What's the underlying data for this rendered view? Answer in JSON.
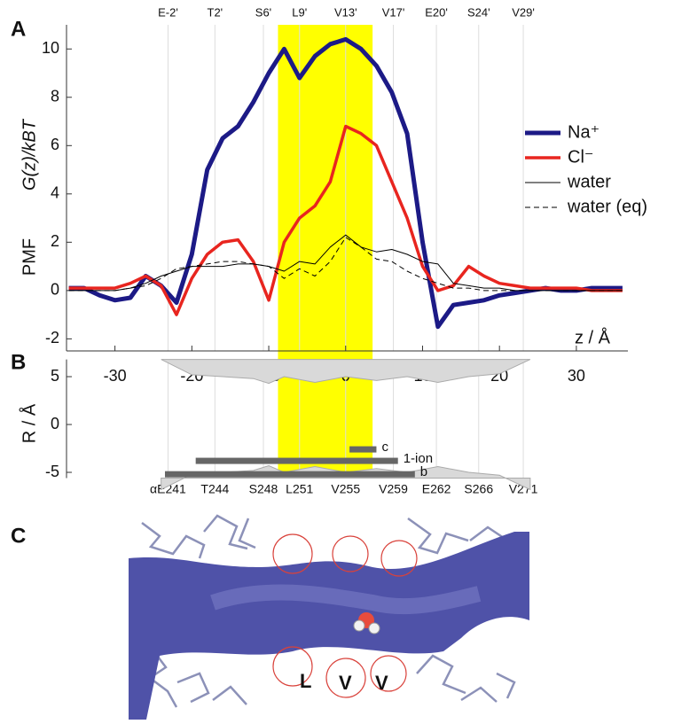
{
  "panel_labels": [
    "A",
    "B",
    "C"
  ],
  "chart_data": [
    {
      "type": "line",
      "y_label": "PMF",
      "y_label_2": "G(z)/kBT",
      "x_label": "z / Å",
      "xlim": [
        -36.3,
        36.7
      ],
      "ylim": [
        -2.5,
        11
      ],
      "xticks": [
        -30,
        -20,
        -10,
        0,
        10,
        20,
        30
      ],
      "yticks": [
        -2,
        0,
        2,
        4,
        6,
        8,
        10
      ],
      "top_ticks": [
        {
          "value": -23.1,
          "label": "E-2'"
        },
        {
          "value": -17,
          "label": "T2'"
        },
        {
          "value": -10.7,
          "label": "S6'"
        },
        {
          "value": -6,
          "label": "L9'"
        },
        {
          "value": 0,
          "label": "V13'"
        },
        {
          "value": 6.2,
          "label": "V17'"
        },
        {
          "value": 11.8,
          "label": "E20'"
        },
        {
          "value": 17.3,
          "label": "S24'"
        },
        {
          "value": 23.1,
          "label": "V29'"
        }
      ],
      "highlight": [
        -8.8,
        3.5
      ],
      "highlight_color": "#ffff00",
      "x": [
        -36,
        -34,
        -32,
        -30,
        -28,
        -26,
        -24,
        -22,
        -20,
        -18,
        -16,
        -14,
        -12,
        -10,
        -8,
        -6,
        -4,
        -2,
        0,
        2,
        4,
        6,
        8,
        10,
        12,
        14,
        16,
        18,
        20,
        22,
        24,
        26,
        28,
        30,
        32,
        34,
        36
      ],
      "series": [
        {
          "name": "Na⁺",
          "color": "#1c1a86",
          "width": 5,
          "dash": false,
          "values": [
            0.1,
            0.1,
            -0.2,
            -0.4,
            -0.3,
            0.6,
            0.2,
            -0.5,
            1.5,
            5,
            6.3,
            6.8,
            7.8,
            9,
            10,
            8.8,
            9.7,
            10.2,
            10.4,
            10,
            9.3,
            8.2,
            6.5,
            2,
            -1.5,
            -0.6,
            -0.5,
            -0.4,
            -0.2,
            -0.1,
            0,
            0.1,
            0,
            0,
            0.1,
            0.1,
            0.1
          ]
        },
        {
          "name": "Cl⁻",
          "color": "#e8251f",
          "width": 3.5,
          "dash": false,
          "values": [
            0.1,
            0.1,
            0.1,
            0.1,
            0.3,
            0.6,
            0.2,
            -1,
            0.5,
            1.5,
            2,
            2.1,
            1.2,
            -0.4,
            2,
            3,
            3.5,
            4.5,
            6.8,
            6.5,
            6,
            4.5,
            3,
            1,
            0,
            0.2,
            1,
            0.6,
            0.3,
            0.2,
            0.1,
            0.1,
            0.1,
            0.1,
            0,
            0,
            0
          ]
        },
        {
          "name": "water",
          "color": "#000000",
          "width": 1,
          "dash": false,
          "values": [
            0,
            0,
            0,
            0,
            0.1,
            0.3,
            0.6,
            0.8,
            1,
            1,
            1,
            1.1,
            1.1,
            1,
            0.8,
            1.2,
            1.1,
            1.8,
            2.3,
            1.8,
            1.6,
            1.7,
            1.5,
            1.2,
            1.1,
            0.3,
            0.2,
            0.1,
            0.1,
            0,
            0,
            0,
            0,
            0,
            0,
            0,
            0
          ]
        },
        {
          "name": "water (eq)",
          "color": "#000000",
          "width": 1,
          "dash": true,
          "values": [
            0,
            0,
            0,
            0,
            0.1,
            0.2,
            0.5,
            0.9,
            1,
            1.1,
            1.2,
            1.2,
            1.1,
            1,
            0.5,
            0.9,
            0.6,
            1.2,
            2.2,
            1.8,
            1.3,
            1.2,
            0.8,
            0.5,
            0.3,
            0.1,
            0.1,
            0,
            0,
            0,
            0,
            0,
            0,
            0,
            0,
            0,
            0
          ]
        }
      ]
    },
    {
      "type": "profile",
      "y_label": "R / Å",
      "xlim": [
        -36.3,
        36.7
      ],
      "ylim": [
        -5.6,
        6.8
      ],
      "yticks": [
        -5,
        0,
        5
      ],
      "bottom_ticks": [
        {
          "value": -23.1,
          "label": "αE241"
        },
        {
          "value": -17,
          "label": "T244"
        },
        {
          "value": -10.7,
          "label": "S248"
        },
        {
          "value": -6,
          "label": "L251"
        },
        {
          "value": 0,
          "label": "V255"
        },
        {
          "value": 6.2,
          "label": "V259"
        },
        {
          "value": 11.8,
          "label": "E262"
        },
        {
          "value": 17.3,
          "label": "S266"
        },
        {
          "value": 23.1,
          "label": "V271"
        }
      ],
      "x": [
        -24,
        -20,
        -16,
        -12,
        -10,
        -8,
        -4,
        0,
        4,
        8,
        12,
        16,
        20,
        24
      ],
      "values": [
        6.8,
        5.2,
        5,
        4.8,
        4.3,
        5,
        4.4,
        5,
        4.6,
        5,
        4.4,
        5,
        5.3,
        6.8
      ],
      "color": "#d9d9d9",
      "ranges": [
        {
          "label": "c",
          "start": 0.5,
          "end": 4,
          "r": -2.6
        },
        {
          "label": "1-ion",
          "start": -19.5,
          "end": 6.8,
          "r": -3.8
        },
        {
          "label": "b",
          "start": -23.5,
          "end": 9,
          "r": -5.2
        }
      ],
      "range_color": "#666666"
    }
  ],
  "image": {
    "labels": [
      "L",
      "V",
      "V"
    ]
  }
}
